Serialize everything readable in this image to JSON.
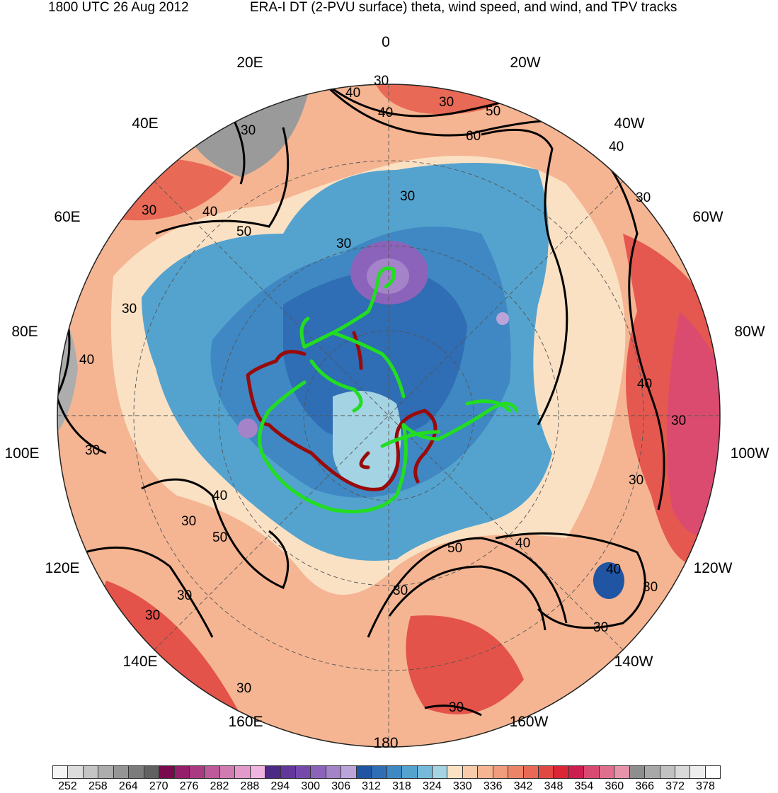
{
  "header": {
    "time": "1800 UTC 26 Aug 2012",
    "title": "ERA-I DT (2-PVU surface) theta, wind speed, and wind, and TPV tracks"
  },
  "longitude_labels": [
    "0",
    "20W",
    "40W",
    "60W",
    "80W",
    "100W",
    "120W",
    "140W",
    "160W",
    "180",
    "160E",
    "140E",
    "120E",
    "100E",
    "80E",
    "60E",
    "40E",
    "20E"
  ],
  "contour_labels": [
    "30",
    "40",
    "50",
    "60"
  ],
  "colorbar": {
    "tick_labels": [
      "252",
      "258",
      "264",
      "270",
      "276",
      "282",
      "288",
      "294",
      "300",
      "306",
      "312",
      "318",
      "324",
      "330",
      "336",
      "342",
      "348",
      "354",
      "360",
      "366",
      "372",
      "378"
    ],
    "colors": [
      "#f5f5f5",
      "#dcdcdc",
      "#c4c4c4",
      "#adadad",
      "#959595",
      "#7c7c7c",
      "#616161",
      "#7a0a4e",
      "#951f6a",
      "#a93b82",
      "#bd5a99",
      "#d07bb2",
      "#e39acb",
      "#f1b3df",
      "#4d2a86",
      "#61389a",
      "#7549ab",
      "#8c63ba",
      "#a483c9",
      "#bba4d8",
      "#1f55a3",
      "#2f6db4",
      "#3f88c3",
      "#54a3cf",
      "#75bad8",
      "#a4d3e3",
      "#fbe1c4",
      "#f8ccaa",
      "#f5b592",
      "#f19c7c",
      "#ec8468",
      "#e86a56",
      "#e24843",
      "#db2436",
      "#cc1e4f",
      "#d94a73",
      "#e06f8e",
      "#e794ab",
      "#8e8e8e",
      "#a8a8a8",
      "#c1c1c1",
      "#d9d9d9",
      "#ededed",
      "#ffffff"
    ]
  },
  "tracks": {
    "green_color": "#22dd22",
    "red_color": "#990a0a"
  }
}
